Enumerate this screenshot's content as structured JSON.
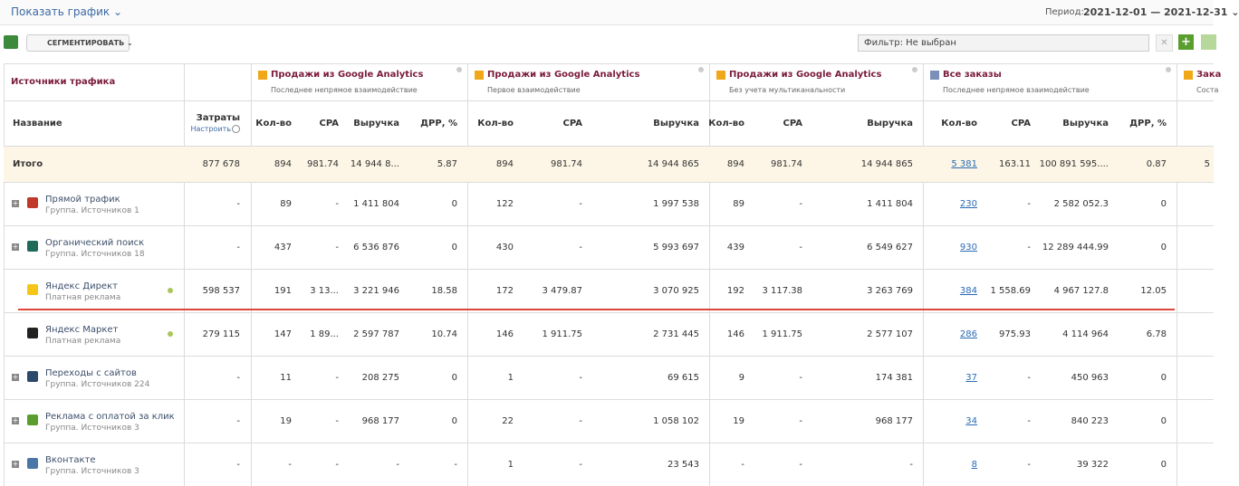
{
  "toolbar": {
    "show_chart": "Показать график",
    "period_label": "Период:",
    "period_value": "2021-12-01 — 2021-12-31",
    "segment": "СЕГМЕНТИРОВАТЬ",
    "filter": "Фильтр: Не выбран"
  },
  "table": {
    "source_header": "Источники трафика",
    "name_header": "Название",
    "cost_header": "Затраты",
    "cost_setup": "Настроить",
    "groups": [
      {
        "title": "Продажи из Google Analytics",
        "subtitle": "Последнее непрямое взаимодействие",
        "columns": [
          "Кол-во",
          "CPA",
          "Выручка",
          "ДРР, %"
        ]
      },
      {
        "title": "Продажи из Google Analytics",
        "subtitle": "Первое взаимодействие",
        "columns": [
          "Кол-во",
          "CPA",
          "Выручка"
        ]
      },
      {
        "title": "Продажи из Google Analytics",
        "subtitle": "Без учета мультиканальности",
        "columns": [
          "Кол-во",
          "CPA",
          "Выручка"
        ]
      },
      {
        "title": "Все заказы",
        "subtitle": "Последнее непрямое взаимодействие",
        "columns": [
          "Кол-во",
          "CPA",
          "Выручка",
          "ДРР, %"
        ]
      },
      {
        "title": "Зака",
        "subtitle": "Соста",
        "columns": []
      }
    ],
    "total": {
      "name": "Итого",
      "cells": [
        "877 678",
        "894",
        "981.74",
        "14 944 8...",
        "5.87",
        "894",
        "981.74",
        "14 944 865",
        "894",
        "981.74",
        "14 944 865",
        "5 381",
        "163.11",
        "100 891 595....",
        "0.87",
        "5"
      ]
    },
    "rows": [
      {
        "name": "Прямой трафик",
        "sub": "Группа. Источников 1",
        "cells": [
          "-",
          "89",
          "-",
          "1 411 804",
          "0",
          "122",
          "-",
          "1 997 538",
          "89",
          "-",
          "1 411 804",
          "230",
          "-",
          "2 582 052.3",
          "0"
        ]
      },
      {
        "name": "Органический поиск",
        "sub": "Группа. Источников 18",
        "cells": [
          "-",
          "437",
          "-",
          "6 536 876",
          "0",
          "430",
          "-",
          "5 993 697",
          "439",
          "-",
          "6 549 627",
          "930",
          "-",
          "12 289 444.99",
          "0"
        ]
      },
      {
        "name": "Яндекс Директ",
        "sub": "Платная реклама",
        "cells": [
          "598 537",
          "191",
          "3 13...",
          "3 221 946",
          "18.58",
          "172",
          "3 479.87",
          "3 070 925",
          "192",
          "3 117.38",
          "3 263 769",
          "384",
          "1 558.69",
          "4 967 127.8",
          "12.05"
        ]
      },
      {
        "name": "Яндекс Маркет",
        "sub": "Платная реклама",
        "cells": [
          "279 115",
          "147",
          "1 89...",
          "2 597 787",
          "10.74",
          "146",
          "1 911.75",
          "2 731 445",
          "146",
          "1 911.75",
          "2 577 107",
          "286",
          "975.93",
          "4 114 964",
          "6.78"
        ]
      },
      {
        "name": "Переходы с сайтов",
        "sub": "Группа. Источников 224",
        "cells": [
          "-",
          "11",
          "-",
          "208 275",
          "0",
          "1",
          "-",
          "69 615",
          "9",
          "-",
          "174 381",
          "37",
          "-",
          "450 963",
          "0"
        ]
      },
      {
        "name": "Реклама с оплатой за клик",
        "sub": "Группа. Источников 3",
        "cells": [
          "-",
          "19",
          "-",
          "968 177",
          "0",
          "22",
          "-",
          "1 058 102",
          "19",
          "-",
          "968 177",
          "34",
          "-",
          "840 223",
          "0"
        ]
      },
      {
        "name": "Вконтакте",
        "sub": "Группа. Источников 3",
        "cells": [
          "-",
          "-",
          "-",
          "-",
          "-",
          "1",
          "-",
          "23 543",
          "-",
          "-",
          "-",
          "8",
          "-",
          "39 322",
          "0"
        ]
      }
    ]
  }
}
